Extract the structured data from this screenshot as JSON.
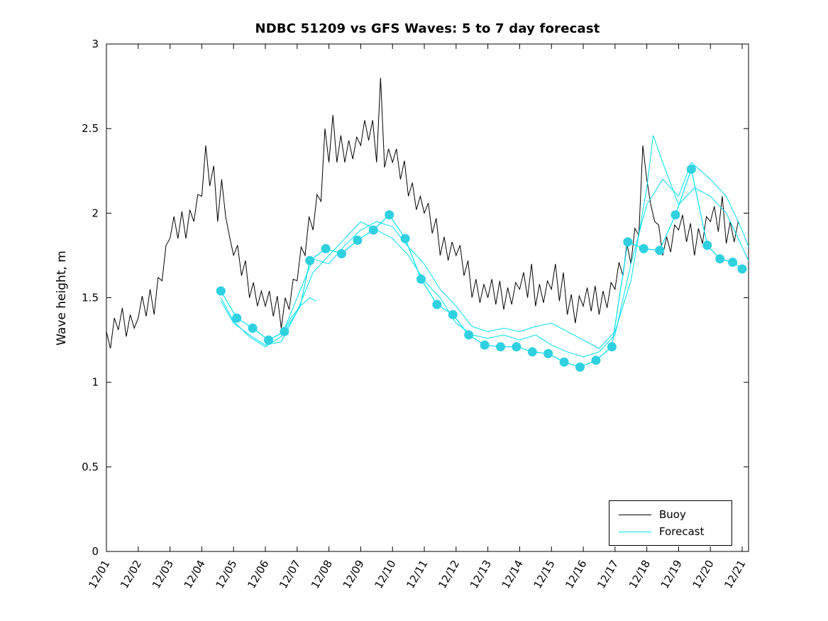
{
  "chart_data": {
    "type": "line",
    "title": "NDBC 51209 vs GFS Waves: 5 to 7 day forecast",
    "xlabel": "",
    "ylabel": "Wave height, m",
    "xlim": [
      0,
      20.2
    ],
    "ylim": [
      0,
      3
    ],
    "x_unit": "days since 12/01",
    "x_ticks": [
      0,
      1,
      2,
      3,
      4,
      5,
      6,
      7,
      8,
      9,
      10,
      11,
      12,
      13,
      14,
      15,
      16,
      17,
      18,
      19,
      20
    ],
    "x_tick_labels": [
      "12/01",
      "12/02",
      "12/03",
      "12/04",
      "12/05",
      "12/06",
      "12/07",
      "12/08",
      "12/09",
      "12/10",
      "12/11",
      "12/12",
      "12/13",
      "12/14",
      "12/15",
      "12/16",
      "12/17",
      "12/18",
      "12/19",
      "12/20",
      "12/21"
    ],
    "y_ticks": [
      0,
      0.5,
      1,
      1.5,
      2,
      2.5,
      3
    ],
    "y_tick_labels": [
      "0",
      "0.5",
      "1",
      "1.5",
      "2",
      "2.5",
      "3"
    ],
    "grid": false,
    "colors": {
      "buoy": "#000000",
      "forecast": "#00e0ee",
      "marker": "#2fd0e0"
    },
    "legend": {
      "position": "bottom-right",
      "entries": [
        {
          "label": "Buoy",
          "color": "#000000"
        },
        {
          "label": "Forecast",
          "color": "#00e0ee"
        }
      ]
    },
    "series": [
      {
        "id": "buoy",
        "name": "Buoy",
        "type": "line",
        "color": "#000000",
        "width": 1,
        "x_start": 0,
        "x_step": 0.125,
        "values": [
          1.3,
          1.2,
          1.38,
          1.31,
          1.44,
          1.27,
          1.4,
          1.32,
          1.38,
          1.51,
          1.39,
          1.55,
          1.4,
          1.62,
          1.6,
          1.81,
          1.85,
          1.98,
          1.85,
          2.01,
          1.85,
          2.02,
          1.95,
          2.11,
          2.1,
          2.4,
          2.16,
          2.28,
          1.95,
          2.2,
          1.98,
          1.86,
          1.75,
          1.81,
          1.63,
          1.72,
          1.5,
          1.59,
          1.45,
          1.54,
          1.45,
          1.54,
          1.39,
          1.51,
          1.32,
          1.5,
          1.43,
          1.61,
          1.6,
          1.8,
          1.75,
          1.98,
          1.9,
          2.11,
          2.07,
          2.5,
          2.3,
          2.58,
          2.3,
          2.46,
          2.3,
          2.43,
          2.32,
          2.45,
          2.4,
          2.55,
          2.43,
          2.55,
          2.3,
          2.8,
          2.27,
          2.38,
          2.3,
          2.38,
          2.2,
          2.31,
          2.1,
          2.18,
          2.02,
          2.1,
          2.0,
          2.06,
          1.88,
          1.97,
          1.75,
          1.86,
          1.72,
          1.83,
          1.75,
          1.81,
          1.63,
          1.72,
          1.5,
          1.61,
          1.47,
          1.58,
          1.5,
          1.61,
          1.46,
          1.6,
          1.43,
          1.56,
          1.46,
          1.59,
          1.55,
          1.65,
          1.5,
          1.7,
          1.45,
          1.58,
          1.47,
          1.6,
          1.55,
          1.7,
          1.48,
          1.65,
          1.4,
          1.52,
          1.35,
          1.51,
          1.45,
          1.56,
          1.42,
          1.57,
          1.4,
          1.54,
          1.44,
          1.59,
          1.55,
          1.71,
          1.63,
          1.82,
          1.7,
          1.91,
          1.87,
          2.4,
          2.2,
          2.05,
          1.95,
          1.93,
          1.75,
          1.86,
          1.77,
          1.93,
          1.9,
          1.99,
          1.83,
          1.94,
          1.75,
          1.91,
          1.82,
          1.98,
          1.95,
          2.04,
          1.89,
          2.1,
          1.82,
          1.95,
          1.83,
          1.95
        ]
      },
      {
        "id": "forecast-run-1",
        "name": "Forecast run 1",
        "type": "line",
        "color": "#00e0ee",
        "width": 1.2,
        "x": [
          3.6,
          4.1,
          4.6,
          5.1,
          5.6,
          6.1,
          6.4,
          6.9,
          7.4,
          7.9,
          8.4,
          8.9,
          9.4,
          9.9,
          10.4,
          10.9,
          11.4,
          11.9,
          12.4,
          12.9,
          13.4,
          13.9,
          14.4,
          14.9,
          15.4,
          15.9,
          16.4,
          16.9,
          17.4,
          17.9,
          18.4,
          18.9,
          19.3,
          19.7,
          20.0
        ],
        "y": [
          1.54,
          1.38,
          1.32,
          1.25,
          1.3,
          1.45,
          1.72,
          1.79,
          1.76,
          1.84,
          1.9,
          1.99,
          1.85,
          1.61,
          1.46,
          1.4,
          1.28,
          1.22,
          1.21,
          1.21,
          1.18,
          1.17,
          1.12,
          1.09,
          1.13,
          1.21,
          1.83,
          1.79,
          1.78,
          1.99,
          2.26,
          1.81,
          1.73,
          1.71,
          1.67
        ]
      },
      {
        "id": "forecast-run-2",
        "name": "Forecast run 2",
        "type": "line",
        "color": "#00e0ee",
        "width": 1,
        "x": [
          3.6,
          4.0,
          4.5,
          5.0,
          5.5,
          6.0,
          6.5,
          7.0,
          7.5,
          8.0,
          8.5,
          9.0,
          9.5,
          10.0,
          10.5,
          11.0,
          11.5,
          12.0,
          12.5,
          13.0,
          13.5,
          14.0,
          14.5,
          15.0,
          15.5,
          16.0,
          16.5,
          17.0,
          17.2,
          17.5,
          18.0,
          18.5,
          19.0,
          19.5,
          20.0,
          20.2
        ],
        "y": [
          1.5,
          1.36,
          1.27,
          1.21,
          1.27,
          1.5,
          1.73,
          1.7,
          1.81,
          1.9,
          1.95,
          1.92,
          1.8,
          1.7,
          1.55,
          1.45,
          1.33,
          1.3,
          1.32,
          1.3,
          1.33,
          1.35,
          1.3,
          1.25,
          1.2,
          1.3,
          1.6,
          2.15,
          2.46,
          2.3,
          2.05,
          2.15,
          2.1,
          2.0,
          1.8,
          1.72
        ]
      },
      {
        "id": "forecast-run-3",
        "name": "Forecast run 3",
        "type": "line",
        "color": "#00e0ee",
        "width": 1,
        "x": [
          3.6,
          4.0,
          4.5,
          5.0,
          5.5,
          6.0,
          6.5,
          7.0,
          7.5,
          8.0,
          8.5,
          9.0,
          9.5,
          10.0,
          10.5,
          11.0,
          11.5,
          12.0,
          12.5,
          13.0,
          13.5,
          14.0,
          14.5,
          15.0,
          15.5,
          16.0,
          16.5,
          17.0,
          17.5,
          18.0,
          18.4,
          19.0,
          19.5,
          20.0,
          20.2
        ],
        "y": [
          1.48,
          1.35,
          1.28,
          1.22,
          1.24,
          1.42,
          1.65,
          1.75,
          1.85,
          1.95,
          1.9,
          1.85,
          1.75,
          1.6,
          1.5,
          1.35,
          1.28,
          1.26,
          1.28,
          1.25,
          1.28,
          1.22,
          1.18,
          1.15,
          1.18,
          1.28,
          1.7,
          2.05,
          2.2,
          2.1,
          2.3,
          2.2,
          2.1,
          1.9,
          1.8
        ]
      },
      {
        "id": "forecast-run-4",
        "name": "Forecast run 4",
        "type": "line",
        "color": "#00e0ee",
        "width": 1,
        "x": [
          5.5,
          5.8,
          6.1,
          6.4,
          6.6
        ],
        "y": [
          1.28,
          1.38,
          1.45,
          1.5,
          1.48
        ]
      },
      {
        "id": "forecast-markers",
        "name": "Forecast markers",
        "type": "scatter",
        "color": "#2fd0e0",
        "x": [
          3.6,
          4.1,
          4.6,
          5.1,
          5.6,
          6.4,
          6.9,
          7.4,
          7.9,
          8.4,
          8.9,
          9.4,
          9.9,
          10.4,
          10.9,
          11.4,
          11.9,
          12.4,
          12.9,
          13.4,
          13.9,
          14.4,
          14.9,
          15.4,
          15.9,
          16.4,
          16.9,
          17.4,
          17.9,
          18.4,
          18.9,
          19.3,
          19.7,
          20.0
        ],
        "y": [
          1.54,
          1.38,
          1.32,
          1.25,
          1.3,
          1.72,
          1.79,
          1.76,
          1.84,
          1.9,
          1.99,
          1.85,
          1.61,
          1.46,
          1.4,
          1.28,
          1.22,
          1.21,
          1.21,
          1.18,
          1.17,
          1.12,
          1.09,
          1.13,
          1.21,
          1.83,
          1.79,
          1.78,
          1.99,
          2.26,
          1.81,
          1.73,
          1.71,
          1.67
        ]
      }
    ]
  }
}
